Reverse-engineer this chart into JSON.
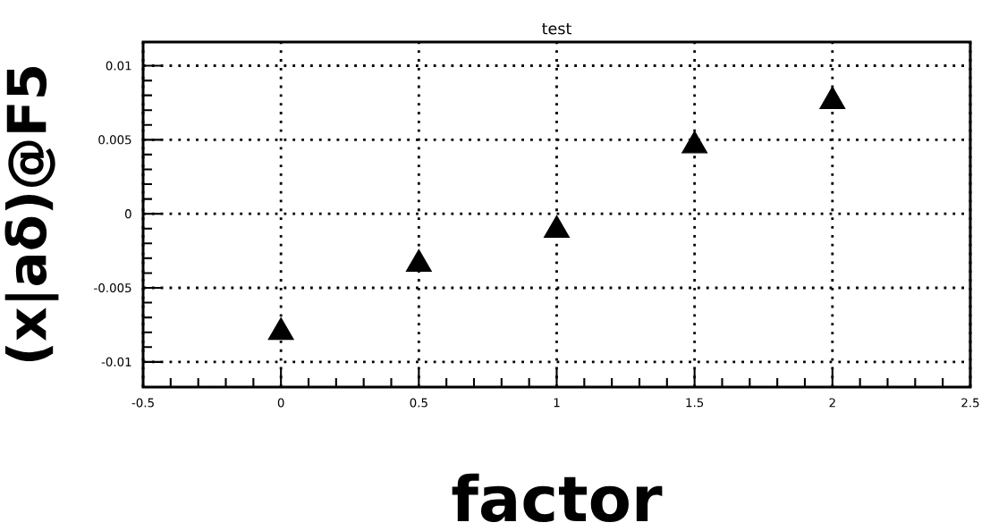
{
  "chart_data": {
    "type": "scatter",
    "title": "test",
    "xlabel": "factor",
    "ylabel": "(x|aδ)@F5",
    "x": [
      0,
      0.5,
      1,
      1.5,
      2
    ],
    "values": [
      -0.008,
      -0.0034,
      -0.0011,
      0.0046,
      0.0076
    ],
    "color": "#000000",
    "marker": "triangle",
    "grid": true,
    "xlim": [
      -0.5,
      2.5
    ],
    "xticks": [
      -0.5,
      0,
      0.5,
      1,
      1.5,
      2,
      2.5
    ],
    "ylim": [
      -0.0117,
      0.0116
    ],
    "yticks": [
      -0.01,
      -0.005,
      0,
      0.005,
      0.01
    ]
  }
}
